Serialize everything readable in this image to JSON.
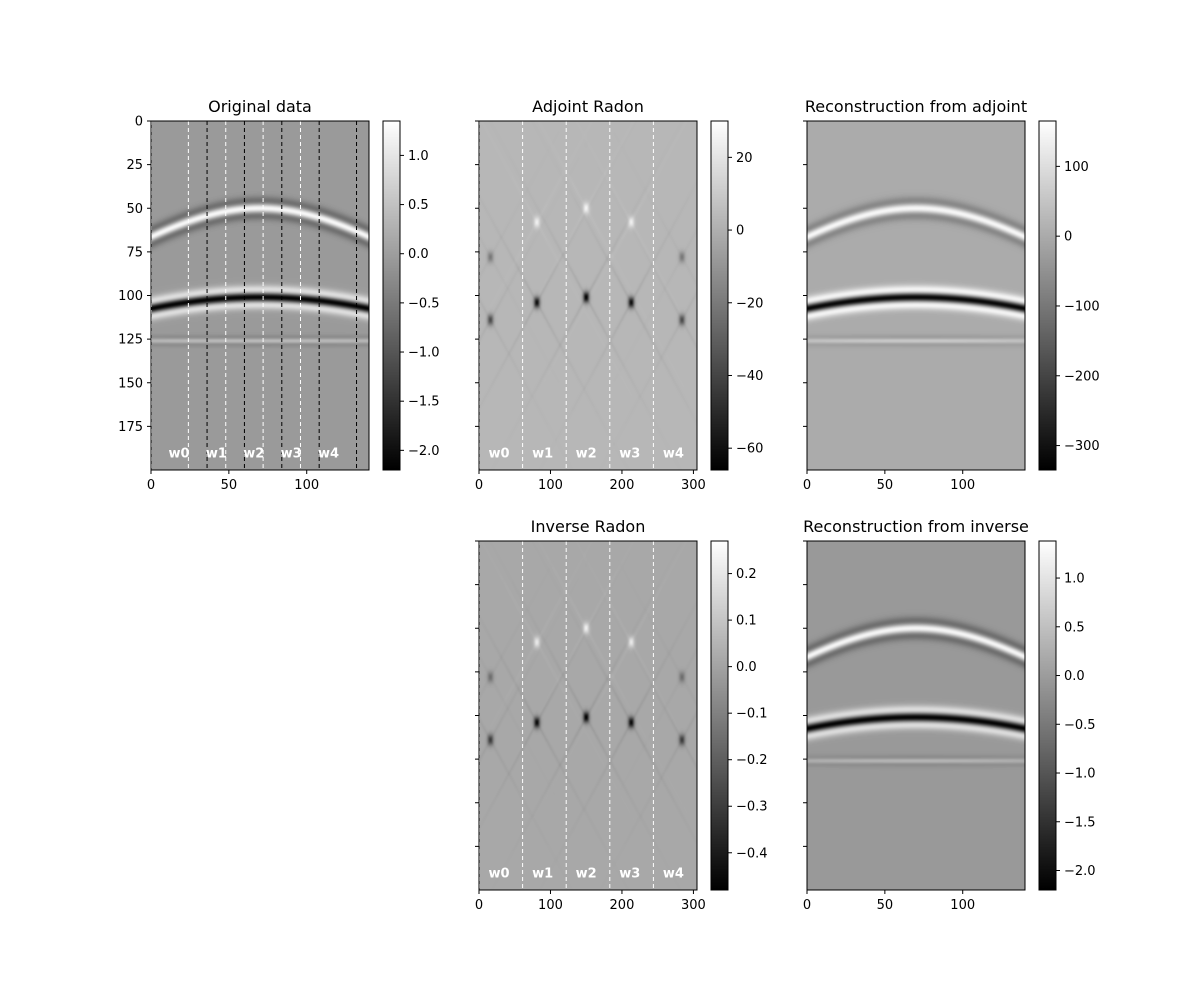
{
  "figure": {
    "background": "#ffffff",
    "colormap": "gray",
    "boundary_line_colors": {
      "white": "#ffffff",
      "black": "#000000"
    }
  },
  "chart_data": [
    {
      "id": "original",
      "type": "heatmap",
      "title": "Original data",
      "xlabel": "",
      "ylabel": "",
      "xlim": [
        0,
        140
      ],
      "ylim": [
        200,
        0
      ],
      "x_ticks": [
        0,
        50,
        100
      ],
      "y_ticks": [
        0,
        25,
        50,
        75,
        100,
        125,
        150,
        175
      ],
      "show_y_tick_labels": true,
      "background_value": -0.05,
      "colorbar": {
        "min": -2.2,
        "max": 1.35,
        "ticks": [
          1.0,
          0.5,
          0.0,
          -0.5,
          -1.0,
          -1.5,
          -2.0
        ],
        "tick_labels": [
          "1.0",
          "0.5",
          "0.0",
          "−0.5",
          "−1.0",
          "−1.5",
          "−2.0"
        ]
      },
      "events": [
        {
          "kind": "hyperbola",
          "t0": 50,
          "x0": 70,
          "v": 1.6,
          "amp": 1.3
        },
        {
          "kind": "hyperbola",
          "t0": 101,
          "x0": 70,
          "v": 1.9,
          "amp": -2.1
        },
        {
          "kind": "flat",
          "t": 126,
          "amp": 0.45,
          "decay": 140
        }
      ],
      "window_lines": [
        {
          "x": 0,
          "color": "white"
        },
        {
          "x": 24,
          "color": "white"
        },
        {
          "x": 36,
          "color": "black"
        },
        {
          "x": 48,
          "color": "white"
        },
        {
          "x": 60,
          "color": "black"
        },
        {
          "x": 72,
          "color": "white"
        },
        {
          "x": 84,
          "color": "black"
        },
        {
          "x": 96,
          "color": "white"
        },
        {
          "x": 108,
          "color": "black"
        },
        {
          "x": 132,
          "color": "black"
        }
      ],
      "window_labels": [
        {
          "text": "w0",
          "x": 18
        },
        {
          "text": "w1",
          "x": 42
        },
        {
          "text": "w2",
          "x": 66
        },
        {
          "text": "w3",
          "x": 90
        },
        {
          "text": "w4",
          "x": 114
        }
      ],
      "window_label_y": 190
    },
    {
      "id": "adjoint",
      "type": "heatmap",
      "title": "Adjoint Radon",
      "xlabel": "",
      "ylabel": "",
      "xlim": [
        0,
        305
      ],
      "ylim": [
        200,
        0
      ],
      "x_ticks": [
        0,
        100,
        200,
        300
      ],
      "y_ticks": [
        0,
        25,
        50,
        75,
        100,
        125,
        150,
        175
      ],
      "show_y_tick_labels": false,
      "background_value": 3,
      "colorbar": {
        "min": -66,
        "max": 30,
        "ticks": [
          20,
          0,
          -20,
          -40,
          -60
        ],
        "tick_labels": [
          "20",
          "0",
          "−20",
          "−40",
          "−60"
        ]
      },
      "panel_centers": [
        0,
        61,
        122,
        183,
        244,
        305
      ],
      "spots": [
        {
          "x": 16,
          "y": 78,
          "amp": -22
        },
        {
          "x": 16,
          "y": 114,
          "amp": -38
        },
        {
          "x": 81,
          "y": 58,
          "amp": 20
        },
        {
          "x": 81,
          "y": 104,
          "amp": -60
        },
        {
          "x": 150,
          "y": 50,
          "amp": 22
        },
        {
          "x": 150,
          "y": 101,
          "amp": -64
        },
        {
          "x": 213,
          "y": 58,
          "amp": 20
        },
        {
          "x": 213,
          "y": 104,
          "amp": -60
        },
        {
          "x": 284,
          "y": 78,
          "amp": -22
        },
        {
          "x": 284,
          "y": 114,
          "amp": -38
        }
      ],
      "window_lines": [
        {
          "x": 0,
          "color": "white"
        },
        {
          "x": 61,
          "color": "white"
        },
        {
          "x": 122,
          "color": "white"
        },
        {
          "x": 183,
          "color": "white"
        },
        {
          "x": 244,
          "color": "white"
        }
      ],
      "window_labels": [
        {
          "text": "w0",
          "x": 28
        },
        {
          "text": "w1",
          "x": 89
        },
        {
          "text": "w2",
          "x": 150
        },
        {
          "text": "w3",
          "x": 211
        },
        {
          "text": "w4",
          "x": 272
        }
      ],
      "window_label_y": 190
    },
    {
      "id": "recon_adjoint",
      "type": "heatmap",
      "title": "Reconstruction from adjoint",
      "xlabel": "",
      "ylabel": "",
      "xlim": [
        0,
        140
      ],
      "ylim": [
        200,
        0
      ],
      "x_ticks": [
        0,
        50,
        100
      ],
      "y_ticks": [
        0,
        25,
        50,
        75,
        100,
        125,
        150,
        175
      ],
      "show_y_tick_labels": false,
      "background_value": 0,
      "colorbar": {
        "min": -335,
        "max": 165,
        "ticks": [
          100,
          0,
          -100,
          -200,
          -300
        ],
        "tick_labels": [
          "100",
          "0",
          "−100",
          "−200",
          "−300"
        ]
      },
      "events": [
        {
          "kind": "hyperbola",
          "t0": 50,
          "x0": 70,
          "v": 1.6,
          "amp": 150
        },
        {
          "kind": "hyperbola",
          "t0": 101,
          "x0": 70,
          "v": 1.9,
          "amp": -320
        },
        {
          "kind": "flat",
          "t": 126,
          "amp": 60,
          "decay": 90
        }
      ],
      "window_lines": [],
      "window_labels": []
    },
    {
      "id": "inverse",
      "type": "heatmap",
      "title": "Inverse Radon",
      "xlabel": "",
      "ylabel": "",
      "xlim": [
        0,
        305
      ],
      "ylim": [
        200,
        0
      ],
      "x_ticks": [
        0,
        100,
        200,
        300
      ],
      "y_ticks": [
        0,
        25,
        50,
        75,
        100,
        125,
        150,
        175
      ],
      "show_y_tick_labels": false,
      "background_value": 0.015,
      "colorbar": {
        "min": -0.48,
        "max": 0.27,
        "ticks": [
          0.2,
          0.1,
          0.0,
          -0.1,
          -0.2,
          -0.3,
          -0.4
        ],
        "tick_labels": [
          "0.2",
          "0.1",
          "0.0",
          "−0.1",
          "−0.2",
          "−0.3",
          "−0.4"
        ]
      },
      "panel_centers": [
        0,
        61,
        122,
        183,
        244,
        305
      ],
      "spots": [
        {
          "x": 16,
          "y": 78,
          "amp": -0.16
        },
        {
          "x": 16,
          "y": 114,
          "amp": -0.3
        },
        {
          "x": 81,
          "y": 58,
          "amp": 0.18
        },
        {
          "x": 81,
          "y": 104,
          "amp": -0.44
        },
        {
          "x": 150,
          "y": 50,
          "amp": 0.2
        },
        {
          "x": 150,
          "y": 101,
          "amp": -0.46
        },
        {
          "x": 213,
          "y": 58,
          "amp": 0.18
        },
        {
          "x": 213,
          "y": 104,
          "amp": -0.44
        },
        {
          "x": 284,
          "y": 78,
          "amp": -0.16
        },
        {
          "x": 284,
          "y": 114,
          "amp": -0.3
        }
      ],
      "window_lines": [
        {
          "x": 0,
          "color": "white"
        },
        {
          "x": 61,
          "color": "white"
        },
        {
          "x": 122,
          "color": "white"
        },
        {
          "x": 183,
          "color": "white"
        },
        {
          "x": 244,
          "color": "white"
        }
      ],
      "window_labels": [
        {
          "text": "w0",
          "x": 28
        },
        {
          "text": "w1",
          "x": 89
        },
        {
          "text": "w2",
          "x": 150
        },
        {
          "text": "w3",
          "x": 211
        },
        {
          "text": "w4",
          "x": 272
        }
      ],
      "window_label_y": 190
    },
    {
      "id": "recon_inverse",
      "type": "heatmap",
      "title": "Reconstruction from inverse",
      "xlabel": "",
      "ylabel": "",
      "xlim": [
        0,
        140
      ],
      "ylim": [
        200,
        0
      ],
      "x_ticks": [
        0,
        50,
        100
      ],
      "y_ticks": [
        0,
        25,
        50,
        75,
        100,
        125,
        150,
        175
      ],
      "show_y_tick_labels": false,
      "background_value": -0.05,
      "colorbar": {
        "min": -2.2,
        "max": 1.38,
        "ticks": [
          1.0,
          0.5,
          0.0,
          -0.5,
          -1.0,
          -1.5,
          -2.0
        ],
        "tick_labels": [
          "1.0",
          "0.5",
          "0.0",
          "−0.5",
          "−1.0",
          "−1.5",
          "−2.0"
        ]
      },
      "events": [
        {
          "kind": "hyperbola",
          "t0": 50,
          "x0": 70,
          "v": 1.6,
          "amp": 1.3
        },
        {
          "kind": "hyperbola",
          "t0": 101,
          "x0": 70,
          "v": 1.9,
          "amp": -2.1
        },
        {
          "kind": "flat",
          "t": 126,
          "amp": 0.4,
          "decay": 90
        }
      ],
      "window_lines": [],
      "window_labels": []
    }
  ]
}
